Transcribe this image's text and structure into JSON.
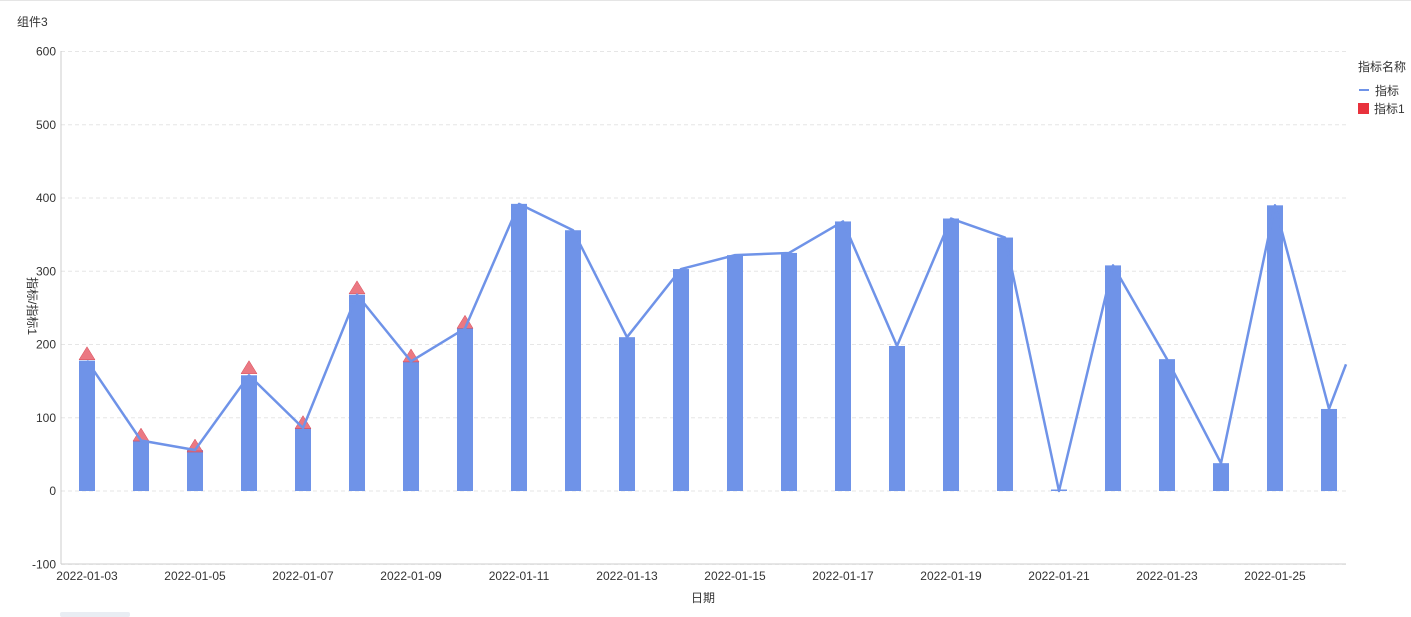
{
  "widget": {
    "title": "组件3"
  },
  "legend": {
    "title": "指标名称",
    "items": [
      {
        "label": "指标",
        "color": "#6f93e8"
      },
      {
        "label": "指标1",
        "color": "#e8323c"
      }
    ]
  },
  "chart_data": {
    "type": "bar",
    "xlabel": "日期",
    "ylabel": "指标/指标1",
    "ylim": [
      -120,
      600
    ],
    "yticks": [
      -100,
      0,
      100,
      200,
      300,
      400,
      500,
      600
    ],
    "grid": true,
    "legend_position": "top-right",
    "categories": [
      "2022-01-03",
      "2022-01-04",
      "2022-01-05",
      "2022-01-06",
      "2022-01-07",
      "2022-01-08",
      "2022-01-09",
      "2022-01-10",
      "2022-01-11",
      "2022-01-12",
      "2022-01-13",
      "2022-01-14",
      "2022-01-15",
      "2022-01-16",
      "2022-01-17",
      "2022-01-18",
      "2022-01-19",
      "2022-01-20",
      "2022-01-21",
      "2022-01-22",
      "2022-01-23",
      "2022-01-24",
      "2022-01-25",
      "2022-01-26"
    ],
    "xtick_labels": [
      "2022-01-03",
      "2022-01-05",
      "2022-01-07",
      "2022-01-09",
      "2022-01-11",
      "2022-01-13",
      "2022-01-15",
      "2022-01-17",
      "2022-01-19",
      "2022-01-21",
      "2022-01-23",
      "2022-01-25"
    ],
    "series": [
      {
        "name": "指标",
        "kind": "bar+line",
        "color": "#6f93e8",
        "values": [
          178,
          69,
          56,
          158,
          86,
          268,
          177,
          222,
          392,
          356,
          210,
          303,
          322,
          325,
          368,
          198,
          372,
          346,
          0,
          308,
          180,
          38,
          390,
          112
        ],
        "line_end_value": 173
      },
      {
        "name": "指标1",
        "kind": "triangle-marker",
        "color": "#e8323c",
        "values": [
          186,
          75,
          60,
          167,
          92,
          276,
          183,
          229,
          null,
          null,
          null,
          null,
          null,
          null,
          null,
          null,
          null,
          null,
          null,
          null,
          null,
          null,
          null,
          null
        ]
      }
    ]
  }
}
